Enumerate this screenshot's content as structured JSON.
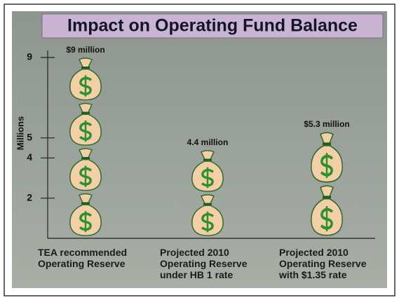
{
  "chart_data": {
    "type": "pictogram",
    "title": "Impact on Operating Fund Balance",
    "y_label": "Millions",
    "categories": [
      "TEA recommended\nOperating Reserve",
      "Projected 2010\nOperating Reserve\nunder HB 1 rate",
      "Projected 2010\nOperating Reserve\nwith $1.35 rate"
    ],
    "values": [
      9,
      4.4,
      5.3
    ],
    "value_labels": [
      "$9 million",
      "4.4 million",
      "$5.3 million"
    ],
    "ylim": [
      0,
      9
    ],
    "yticks": [
      2,
      4,
      5,
      9
    ]
  }
}
